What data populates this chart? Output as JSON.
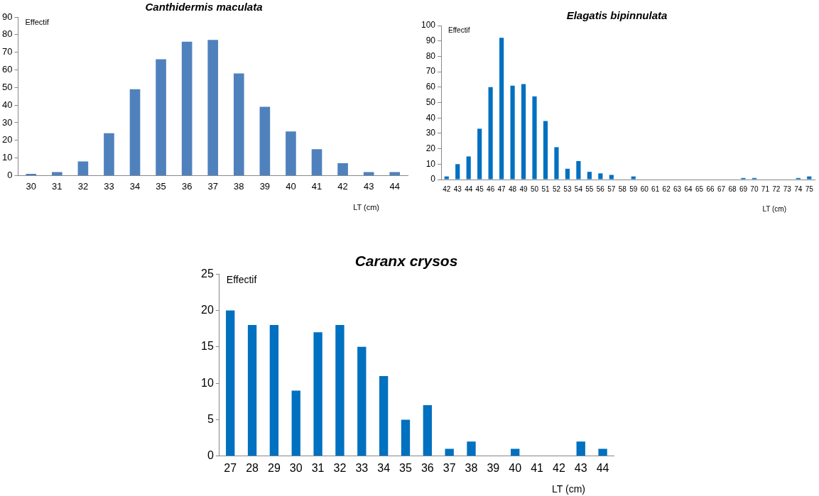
{
  "chart_data": [
    {
      "type": "bar",
      "title": "Canthidermis maculata",
      "xlabel": "LT (cm)",
      "ylabel": "Effectif",
      "categories": [
        "30",
        "31",
        "32",
        "33",
        "34",
        "35",
        "36",
        "37",
        "38",
        "39",
        "40",
        "41",
        "42",
        "43",
        "44"
      ],
      "values": [
        1,
        2,
        8,
        24,
        49,
        66,
        76,
        77,
        58,
        39,
        25,
        15,
        7,
        2,
        2
      ],
      "color": "#4f81bd",
      "ylim": [
        0,
        90
      ],
      "yticks": [
        0,
        10,
        20,
        30,
        40,
        50,
        60,
        70,
        80,
        90
      ],
      "grid": false
    },
    {
      "type": "bar",
      "title": "Elagatis bipinnulata",
      "xlabel": "LT (cm)",
      "ylabel": "Effectif",
      "categories": [
        "42",
        "43",
        "44",
        "45",
        "46",
        "47",
        "48",
        "49",
        "50",
        "51",
        "52",
        "53",
        "54",
        "55",
        "56",
        "57",
        "58",
        "59",
        "60",
        "61",
        "62",
        "63",
        "64",
        "65",
        "66",
        "67",
        "68",
        "69",
        "70",
        "71",
        "72",
        "73",
        "74",
        "75"
      ],
      "values": [
        2,
        10,
        15,
        33,
        60,
        92,
        61,
        62,
        54,
        38,
        21,
        7,
        12,
        5,
        4,
        3,
        0,
        2,
        0,
        0,
        0,
        0,
        0,
        0,
        0,
        0,
        0,
        1,
        1,
        0,
        0,
        0,
        1,
        2
      ],
      "color": "#0070c0",
      "ylim": [
        0,
        100
      ],
      "yticks": [
        0,
        10,
        20,
        30,
        40,
        50,
        60,
        70,
        80,
        90,
        100
      ],
      "grid": false
    },
    {
      "type": "bar",
      "title": "Caranx crysos",
      "xlabel": "LT (cm)",
      "ylabel": "Effectif",
      "categories": [
        "27",
        "28",
        "29",
        "30",
        "31",
        "32",
        "33",
        "34",
        "35",
        "36",
        "37",
        "38",
        "39",
        "40",
        "41",
        "42",
        "43",
        "44"
      ],
      "values": [
        20,
        18,
        18,
        9,
        17,
        18,
        15,
        11,
        5,
        7,
        1,
        2,
        0,
        1,
        0,
        0,
        2,
        1
      ],
      "color": "#0070c0",
      "ylim": [
        0,
        25
      ],
      "yticks": [
        0,
        5,
        10,
        15,
        20,
        25
      ],
      "grid": false
    }
  ]
}
